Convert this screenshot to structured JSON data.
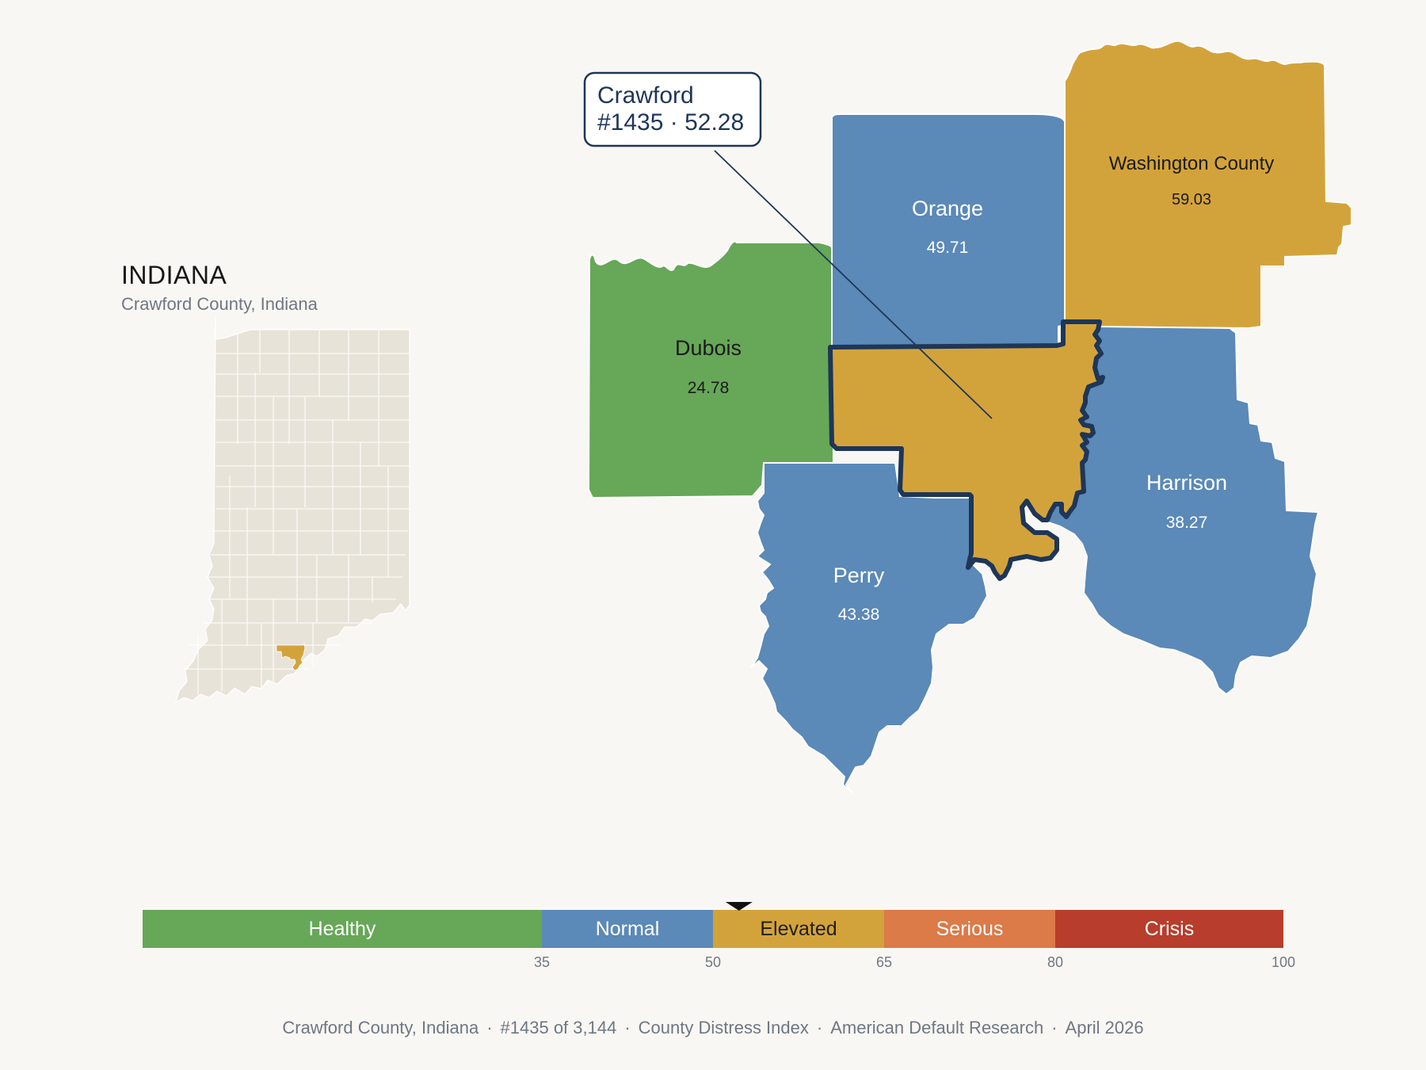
{
  "state": {
    "title": "INDIANA",
    "subtitle": "Crawford County, Indiana"
  },
  "callout": {
    "line1": "Crawford",
    "line2": "#1435 · 52.28"
  },
  "counties": [
    {
      "name": "Crawford",
      "value": "",
      "category": "Elevated",
      "color": "#d3a33b",
      "focus": true
    },
    {
      "name": "Dubois",
      "value": "24.78",
      "category": "Healthy",
      "color": "#67a758"
    },
    {
      "name": "Orange",
      "value": "49.71",
      "category": "Normal",
      "color": "#5b89b8"
    },
    {
      "name": "Washington County",
      "value": "59.03",
      "category": "Elevated",
      "color": "#d3a33b"
    },
    {
      "name": "Harrison",
      "value": "38.27",
      "category": "Normal",
      "color": "#5b89b8"
    },
    {
      "name": "Perry",
      "value": "43.38",
      "category": "Normal",
      "color": "#5b89b8"
    }
  ],
  "legend": {
    "segments": [
      {
        "label": "Healthy",
        "from": 0,
        "to": 35,
        "color": "#67a758",
        "text_color": "#ffffff"
      },
      {
        "label": "Normal",
        "from": 35,
        "to": 50,
        "color": "#5b89b8",
        "text_color": "#ffffff"
      },
      {
        "label": "Elevated",
        "from": 50,
        "to": 65,
        "color": "#d3a33b",
        "text_color": "#1e1e1e"
      },
      {
        "label": "Serious",
        "from": 65,
        "to": 80,
        "color": "#dc7a48",
        "text_color": "#ffffff"
      },
      {
        "label": "Crisis",
        "from": 80,
        "to": 100,
        "color": "#b83d2c",
        "text_color": "#ffffff"
      }
    ],
    "ticks": [
      "35",
      "50",
      "65",
      "80",
      "100"
    ],
    "marker_value": 52.28
  },
  "footer": {
    "items": [
      "Crawford County, Indiana",
      "#1435 of 3,144",
      "County Distress Index",
      "American Default Research",
      "April 2026"
    ]
  },
  "colors": {
    "background": "#f9f7f3",
    "inset_fill": "#e8e3d8",
    "highlight": "#d3a33b",
    "outline": "#1e3658"
  }
}
